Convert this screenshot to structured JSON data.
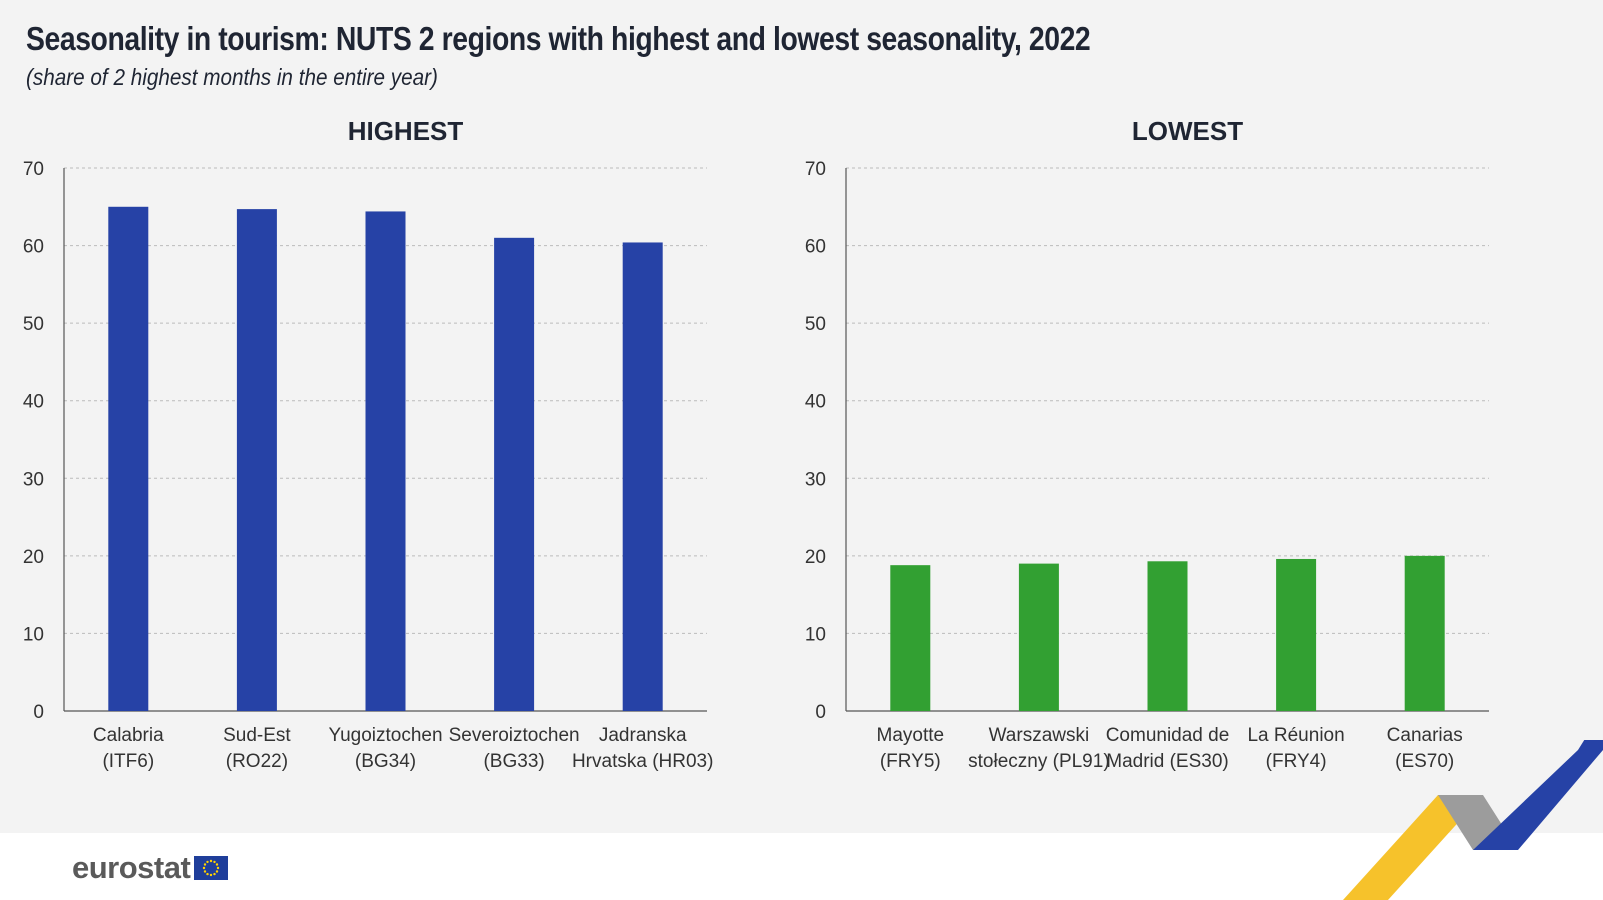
{
  "title": "Seasonality in tourism: NUTS 2 regions with highest and lowest seasonality, 2022",
  "subtitle": "(share of 2 highest months in the entire year)",
  "brand": {
    "name": "eurostat"
  },
  "colors": {
    "highest": "#2642a6",
    "lowest": "#32a032",
    "background": "#f3f3f3",
    "grid": "#bbbbbb"
  },
  "chart_data": [
    {
      "type": "bar",
      "title": "HIGHEST",
      "categories": [
        [
          "Calabria",
          "(ITF6)"
        ],
        [
          "Sud-Est",
          "(RO22)"
        ],
        [
          "Yugoiztochen",
          "(BG34)"
        ],
        [
          "Severoiztochen",
          "(BG33)"
        ],
        [
          "Jadranska",
          "Hrvatska (HR03)"
        ]
      ],
      "values": [
        65,
        64.7,
        64.4,
        61,
        60.4
      ],
      "ylim": [
        0,
        70
      ],
      "yticks": [
        0,
        10,
        20,
        30,
        40,
        50,
        60,
        70
      ],
      "xlabel": "",
      "ylabel": "",
      "grid": true
    },
    {
      "type": "bar",
      "title": "LOWEST",
      "categories": [
        [
          "Mayotte",
          "(FRY5)"
        ],
        [
          "Warszawski",
          "stołeczny (PL91)"
        ],
        [
          "Comunidad de",
          "Madrid (ES30)"
        ],
        [
          "La Réunion",
          "(FRY4)"
        ],
        [
          "Canarias",
          "(ES70)"
        ]
      ],
      "values": [
        18.8,
        19,
        19.3,
        19.6,
        20
      ],
      "ylim": [
        0,
        70
      ],
      "yticks": [
        0,
        10,
        20,
        30,
        40,
        50,
        60,
        70
      ],
      "xlabel": "",
      "ylabel": "",
      "grid": true
    }
  ]
}
